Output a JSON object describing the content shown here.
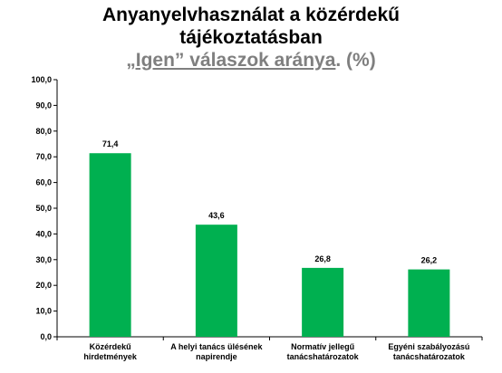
{
  "chart_data": {
    "type": "bar",
    "title_line1": "Anyanyelvhasználat a közérdekű",
    "title_line2": "tájékoztatásban",
    "subtitle_underlined": "„Igen” válaszok aránya",
    "subtitle_rest": ". (%)",
    "categories": [
      [
        "Közérdekű",
        "hirdetmények"
      ],
      [
        "A helyi tanács ülésének",
        "napirendje"
      ],
      [
        "Normatív jellegű",
        "tanácshatározatok"
      ],
      [
        "Egyéni szabályozású",
        "tanácshatározatok"
      ]
    ],
    "values": [
      71.4,
      43.6,
      26.8,
      26.2
    ],
    "data_labels": [
      "71,4",
      "43,6",
      "26,8",
      "26,2"
    ],
    "ylim": [
      0,
      100
    ],
    "y_ticks": [
      "0,0",
      "10,0",
      "20,0",
      "30,0",
      "40,0",
      "50,0",
      "60,0",
      "70,0",
      "80,0",
      "90,0",
      "100,0"
    ],
    "bar_color": "#00b050",
    "grid": false,
    "legend": "none"
  }
}
